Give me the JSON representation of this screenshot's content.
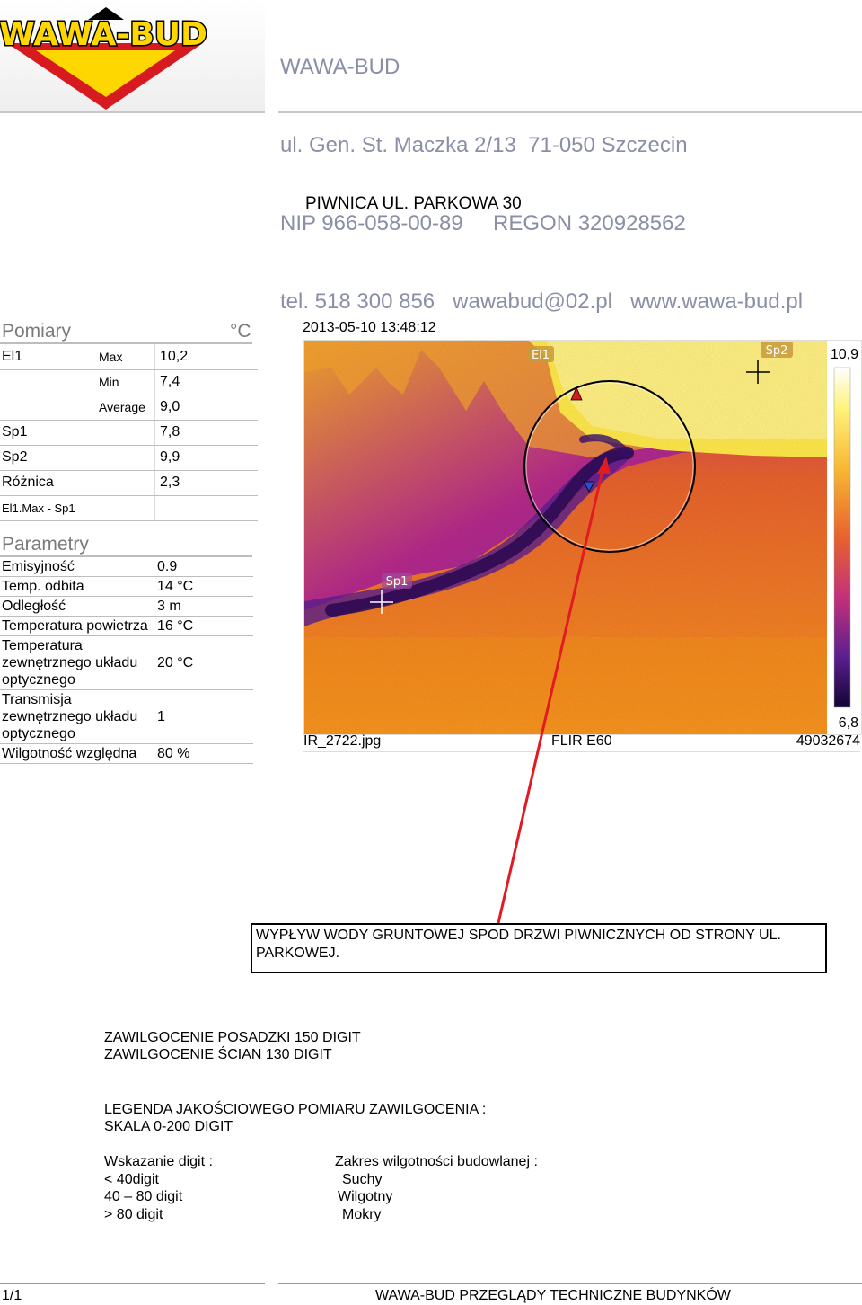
{
  "logo": {
    "text": "WAWA-BUD",
    "colors": {
      "red": "#d71920",
      "yellow": "#ffd700",
      "black": "#000000"
    }
  },
  "company": {
    "name": "WAWA-BUD",
    "address": "ul. Gen. St. Maczka 2/13  71-050 Szczecin",
    "ids": "NIP 966-058-00-89     REGON 320928562",
    "contact": "tel. 518 300 856   wawabud@02.pl   www.wawa-bud.pl"
  },
  "title": "PIWNICA UL. PARKOWA 30",
  "measurements": {
    "heading": "Pomiary",
    "unit": "°C",
    "rows": [
      {
        "label": "El1",
        "sub": "Max",
        "value": "10,2"
      },
      {
        "label": "",
        "sub": "Min",
        "value": "7,4"
      },
      {
        "label": "",
        "sub": "Average",
        "value": "9,0"
      },
      {
        "label": "Sp1",
        "sub": "",
        "value": "7,8"
      },
      {
        "label": "Sp2",
        "sub": "",
        "value": "9,9"
      },
      {
        "label": "Różnica",
        "sub": "",
        "value": "2,3"
      },
      {
        "label": "El1.Max - Sp1",
        "sub": "",
        "value": ""
      }
    ]
  },
  "parameters": {
    "heading": "Parametry",
    "rows": [
      {
        "label": "Emisyjność",
        "value": "0.9"
      },
      {
        "label": "Temp. odbita",
        "value": "14  °C"
      },
      {
        "label": "Odległość",
        "value": "3  m"
      },
      {
        "label": "Temperatura powietrza",
        "value": "16  °C"
      },
      {
        "label": "Temperatura zewnętrznego układu optycznego",
        "value": "20  °C"
      },
      {
        "label": "Transmisja zewnętrznego układu optycznego",
        "value": "1"
      },
      {
        "label": "Wilgotność względna",
        "value": "80  %"
      }
    ]
  },
  "thermal": {
    "timestamp": "2013-05-10 13:48:12",
    "labels": {
      "el1": "El1",
      "sp1": "Sp1",
      "sp2": "Sp2"
    },
    "scale_max": "10,9",
    "scale_min": "6,8",
    "filename": "IR_2722.jpg",
    "camera": "FLIR E60",
    "serial": "49032674",
    "colors": {
      "hot": "#ffe84a",
      "warm": "#f7941d",
      "mid": "#c2307a",
      "cool": "#7a2aa8",
      "cold": "#1f0a4a"
    }
  },
  "notes": {
    "box": "WYPŁYW WODY GRUNTOWEJ SPOD DRZWI PIWNICZNYCH OD STRONY UL. PARKOWEJ.",
    "line1": "ZAWILGOCENIE POSADZKI 150 DIGIT",
    "line2": "ZAWILGOCENIE ŚCIAN 130 DIGIT",
    "legend_title": "LEGENDA JAKOŚCIOWEGO POMIARU ZAWILGOCENIA  :",
    "legend_scale": "SKALA 0-200 DIGIT",
    "col1_head": "Wskazanie digit  :",
    "col1": [
      "< 40digit",
      "40 – 80 digit",
      "> 80 digit"
    ],
    "col2_head": "Zakres wilgotności budowlanej :",
    "col2": [
      "Suchy",
      "Wilgotny",
      "Mokry"
    ]
  },
  "footer": {
    "page": "1/1",
    "text": "WAWA-BUD PRZEGLĄDY TECHNICZNE BUDYNKÓW"
  }
}
